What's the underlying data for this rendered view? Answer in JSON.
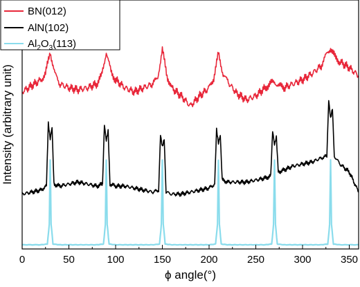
{
  "chart_data": {
    "type": "line",
    "xlabel": "ϕ angle(°)",
    "ylabel": "Intensity (arbitrary unit)",
    "xlim": [
      0,
      360
    ],
    "x_ticks": [
      "0",
      "50",
      "100",
      "150",
      "200",
      "250",
      "300",
      "350"
    ],
    "y_ticks_labeled": false,
    "grid": false,
    "legend_position": "top-left",
    "series": [
      {
        "name": "BN(012)",
        "color": "#e8273a",
        "x": [
          0,
          10,
          20,
          25,
          30,
          35,
          40,
          50,
          60,
          70,
          80,
          85,
          90,
          95,
          100,
          110,
          120,
          130,
          140,
          145,
          150,
          155,
          160,
          170,
          180,
          190,
          200,
          205,
          210,
          215,
          220,
          230,
          240,
          250,
          260,
          265,
          270,
          275,
          280,
          290,
          300,
          310,
          320,
          325,
          330,
          335,
          340,
          350,
          360
        ],
        "y": [
          0.68,
          0.71,
          0.74,
          0.77,
          0.88,
          0.77,
          0.72,
          0.7,
          0.69,
          0.7,
          0.72,
          0.76,
          0.88,
          0.78,
          0.74,
          0.7,
          0.68,
          0.7,
          0.72,
          0.75,
          0.89,
          0.76,
          0.7,
          0.66,
          0.61,
          0.66,
          0.7,
          0.75,
          0.87,
          0.77,
          0.73,
          0.67,
          0.64,
          0.66,
          0.7,
          0.72,
          0.73,
          0.71,
          0.7,
          0.72,
          0.74,
          0.77,
          0.81,
          0.86,
          0.9,
          0.85,
          0.83,
          0.8,
          0.76
        ]
      },
      {
        "name": "AlN(102)",
        "color": "#000000",
        "x": [
          0,
          10,
          20,
          26,
          28,
          30,
          32,
          34,
          40,
          50,
          60,
          70,
          80,
          86,
          88,
          90,
          92,
          94,
          100,
          110,
          120,
          130,
          140,
          146,
          148,
          150,
          152,
          154,
          160,
          170,
          180,
          190,
          200,
          206,
          208,
          210,
          212,
          214,
          220,
          230,
          240,
          250,
          260,
          266,
          268,
          270,
          272,
          274,
          280,
          290,
          300,
          310,
          320,
          326,
          328,
          330,
          332,
          334,
          340,
          350,
          360
        ],
        "y": [
          0.17,
          0.18,
          0.19,
          0.21,
          0.52,
          0.44,
          0.5,
          0.22,
          0.21,
          0.22,
          0.23,
          0.22,
          0.21,
          0.22,
          0.52,
          0.44,
          0.49,
          0.22,
          0.21,
          0.21,
          0.2,
          0.19,
          0.18,
          0.19,
          0.47,
          0.41,
          0.45,
          0.18,
          0.17,
          0.17,
          0.18,
          0.19,
          0.2,
          0.22,
          0.49,
          0.42,
          0.46,
          0.24,
          0.23,
          0.23,
          0.23,
          0.24,
          0.25,
          0.26,
          0.48,
          0.41,
          0.45,
          0.28,
          0.29,
          0.31,
          0.32,
          0.33,
          0.35,
          0.36,
          0.64,
          0.55,
          0.6,
          0.36,
          0.32,
          0.28,
          0.18
        ]
      },
      {
        "name": "Al2O3(113)",
        "color": "#8adcec",
        "x": [
          0,
          20,
          27,
          29,
          30,
          31,
          33,
          40,
          80,
          87,
          89,
          90,
          91,
          93,
          100,
          140,
          147,
          149,
          150,
          151,
          153,
          160,
          200,
          207,
          209,
          210,
          211,
          213,
          220,
          260,
          267,
          269,
          270,
          271,
          273,
          280,
          320,
          327,
          329,
          330,
          331,
          333,
          340,
          360
        ],
        "y": [
          0.01,
          0.01,
          0.02,
          0.3,
          1.2,
          0.3,
          0.02,
          0.01,
          0.01,
          0.02,
          0.3,
          1.2,
          0.3,
          0.02,
          0.01,
          0.01,
          0.02,
          0.3,
          1.2,
          0.3,
          0.02,
          0.01,
          0.01,
          0.02,
          0.3,
          1.2,
          0.3,
          0.02,
          0.01,
          0.01,
          0.02,
          0.3,
          1.2,
          0.3,
          0.02,
          0.01,
          0.01,
          0.02,
          0.3,
          1.2,
          0.3,
          0.02,
          0.01,
          0.01
        ]
      }
    ]
  }
}
